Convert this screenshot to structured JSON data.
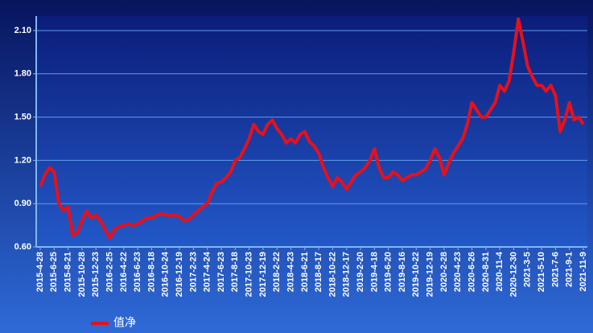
{
  "chart_data": {
    "type": "line",
    "categories": [
      "2015-4-28",
      null,
      null,
      "2015-6-25",
      null,
      null,
      "2015-8-21",
      null,
      null,
      "2015-10-28",
      null,
      null,
      "2015-12-23",
      null,
      null,
      "2016-2-25",
      null,
      null,
      "2016-4-22",
      null,
      null,
      "2016-6-23",
      null,
      null,
      "2016-8-18",
      null,
      null,
      "2016-10-24",
      null,
      null,
      "2016-12-19",
      null,
      null,
      "2017-2-23",
      null,
      null,
      "2017-4-24",
      null,
      null,
      "2017-6-23",
      null,
      null,
      "2017-8-18",
      null,
      null,
      "2017-10-23",
      null,
      null,
      "2017-12-19",
      null,
      null,
      "2018-2-22",
      null,
      null,
      "2018-4-23",
      null,
      null,
      "2018-6-21",
      null,
      null,
      "2018-8-17",
      null,
      null,
      "2018-10-22",
      null,
      null,
      "2018-12-17",
      null,
      null,
      "2019-2-20",
      null,
      null,
      "2019-4-18",
      null,
      null,
      "2019-6-20",
      null,
      null,
      "2019-8-16",
      null,
      null,
      "2019-10-22",
      null,
      null,
      "2019-12-19",
      null,
      null,
      "2020-2-28",
      null,
      null,
      "2020-4-23",
      null,
      null,
      "2020-6-26",
      null,
      null,
      "2020-8-31",
      null,
      null,
      "2020-11-4",
      null,
      null,
      "2020-12-30",
      null,
      null,
      "2021-3-5",
      null,
      null,
      "2021-5-10",
      null,
      null,
      "2021-7-6",
      null,
      null,
      "2021-9-1",
      null,
      null,
      "2021-11-9"
    ],
    "series": [
      {
        "name": "值净",
        "color": "#e8101a",
        "values": [
          1.02,
          1.1,
          1.15,
          1.12,
          0.9,
          0.85,
          0.88,
          0.68,
          0.7,
          0.78,
          0.85,
          0.8,
          0.82,
          0.78,
          0.72,
          0.66,
          0.72,
          0.74,
          0.75,
          0.76,
          0.75,
          0.76,
          0.78,
          0.8,
          0.8,
          0.82,
          0.83,
          0.82,
          0.82,
          0.82,
          0.81,
          0.78,
          0.79,
          0.82,
          0.85,
          0.88,
          0.9,
          0.98,
          1.04,
          1.05,
          1.08,
          1.12,
          1.2,
          1.22,
          1.28,
          1.35,
          1.45,
          1.4,
          1.38,
          1.45,
          1.48,
          1.42,
          1.38,
          1.32,
          1.35,
          1.32,
          1.38,
          1.4,
          1.33,
          1.3,
          1.25,
          1.15,
          1.08,
          1.02,
          1.08,
          1.05,
          1.0,
          1.05,
          1.1,
          1.12,
          1.15,
          1.2,
          1.28,
          1.15,
          1.08,
          1.08,
          1.12,
          1.1,
          1.06,
          1.08,
          1.1,
          1.1,
          1.12,
          1.14,
          1.2,
          1.28,
          1.22,
          1.1,
          1.18,
          1.25,
          1.3,
          1.35,
          1.45,
          1.6,
          1.55,
          1.5,
          1.5,
          1.55,
          1.6,
          1.72,
          1.68,
          1.75,
          1.95,
          2.18,
          2.02,
          1.85,
          1.78,
          1.72,
          1.72,
          1.68,
          1.72,
          1.65,
          1.4,
          1.48,
          1.6,
          1.48,
          1.5,
          1.45
        ]
      }
    ],
    "ylim": [
      0.6,
      2.2
    ],
    "yticks": [
      {
        "value": 0.6,
        "label": "0.60"
      },
      {
        "value": 0.9,
        "label": "0.90"
      },
      {
        "value": 1.2,
        "label": "1.20"
      },
      {
        "value": 1.5,
        "label": "1.50"
      },
      {
        "value": 1.8,
        "label": "1.80"
      },
      {
        "value": 2.1,
        "label": "2.10"
      }
    ],
    "grid": true,
    "legend": "bottom-left"
  }
}
